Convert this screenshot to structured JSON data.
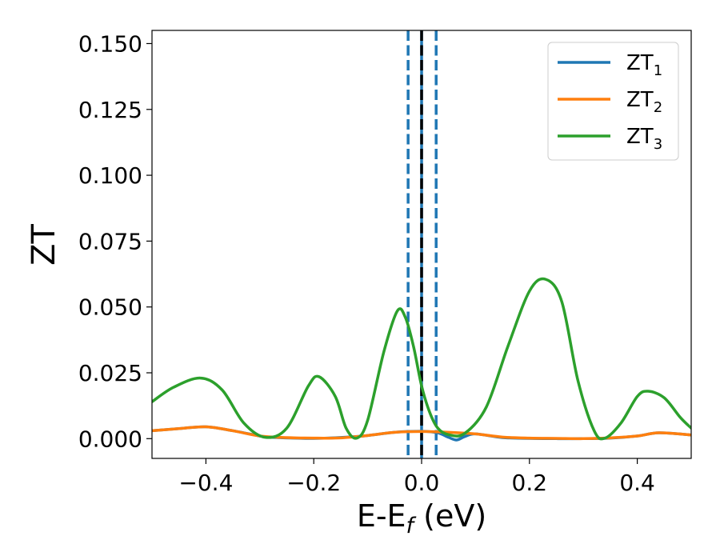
{
  "chart_data": {
    "type": "line",
    "title": "",
    "xlabel": {
      "main": "E-E",
      "sub": "f",
      "suffix": " (eV)"
    },
    "ylabel": "ZT",
    "xlim": [
      -0.5,
      0.5
    ],
    "ylim": [
      -0.0075,
      0.155
    ],
    "xticks": [
      -0.4,
      -0.2,
      0.0,
      0.2,
      0.4
    ],
    "xtick_labels": [
      "−0.4",
      "−0.2",
      "0.0",
      "0.2",
      "0.4"
    ],
    "yticks": [
      0.0,
      0.025,
      0.05,
      0.075,
      0.1,
      0.125,
      0.15
    ],
    "ytick_labels": [
      "0.000",
      "0.025",
      "0.050",
      "0.075",
      "0.100",
      "0.125",
      "0.150"
    ],
    "legend_position": "top-right",
    "vlines": [
      {
        "x": -0.025,
        "style": "dashed",
        "color": "#1f77b4"
      },
      {
        "x": 0.0,
        "style": "solid",
        "color": "#1f77b4"
      },
      {
        "x": 0.0,
        "style": "dashed",
        "color": "#000000"
      },
      {
        "x": 0.027,
        "style": "dashed",
        "color": "#1f77b4"
      }
    ],
    "series": [
      {
        "name": "ZT",
        "subscript": "1",
        "color": "#1f77b4",
        "x": [
          -0.5,
          -0.45,
          -0.4,
          -0.35,
          -0.3,
          -0.28,
          -0.2,
          -0.12,
          -0.05,
          0.0,
          0.03,
          0.05,
          0.065,
          0.08,
          0.1,
          0.15,
          0.2,
          0.25,
          0.3,
          0.35,
          0.4,
          0.44,
          0.5
        ],
        "y": [
          0.003,
          0.0038,
          0.0045,
          0.003,
          0.001,
          0.0005,
          0.0001,
          0.0008,
          0.0024,
          0.0028,
          0.0022,
          0.0005,
          -0.0005,
          0.0008,
          0.0018,
          0.0004,
          0.0001,
          0.0,
          0.0,
          0.0002,
          0.001,
          0.0022,
          0.0014
        ]
      },
      {
        "name": "ZT",
        "subscript": "2",
        "color": "#ff7f0e",
        "x": [
          -0.5,
          -0.45,
          -0.4,
          -0.35,
          -0.3,
          -0.25,
          -0.2,
          -0.15,
          -0.1,
          -0.05,
          0.0,
          0.05,
          0.1,
          0.15,
          0.2,
          0.25,
          0.3,
          0.35,
          0.4,
          0.44,
          0.5
        ],
        "y": [
          0.003,
          0.0038,
          0.0045,
          0.003,
          0.001,
          0.0004,
          0.0002,
          0.0003,
          0.0012,
          0.0024,
          0.0027,
          0.0024,
          0.0018,
          0.0006,
          0.0002,
          0.0001,
          0.0,
          0.0003,
          0.001,
          0.0022,
          0.0014
        ]
      },
      {
        "name": "ZT",
        "subscript": "3",
        "color": "#2ca02c",
        "x": [
          -0.5,
          -0.46,
          -0.41,
          -0.37,
          -0.33,
          -0.29,
          -0.25,
          -0.21,
          -0.19,
          -0.16,
          -0.14,
          -0.12,
          -0.1,
          -0.07,
          -0.045,
          -0.03,
          -0.015,
          0.0,
          0.015,
          0.03,
          0.05,
          0.08,
          0.12,
          0.16,
          0.2,
          0.23,
          0.26,
          0.29,
          0.32,
          0.34,
          0.37,
          0.4,
          0.42,
          0.45,
          0.48,
          0.5
        ],
        "y": [
          0.014,
          0.0195,
          0.023,
          0.0185,
          0.006,
          0.0005,
          0.004,
          0.02,
          0.0235,
          0.016,
          0.004,
          0.0002,
          0.007,
          0.033,
          0.0485,
          0.046,
          0.035,
          0.02,
          0.01,
          0.004,
          0.0015,
          0.002,
          0.012,
          0.035,
          0.056,
          0.0605,
          0.052,
          0.022,
          0.003,
          0.0002,
          0.006,
          0.016,
          0.018,
          0.0155,
          0.008,
          0.004
        ]
      }
    ]
  }
}
